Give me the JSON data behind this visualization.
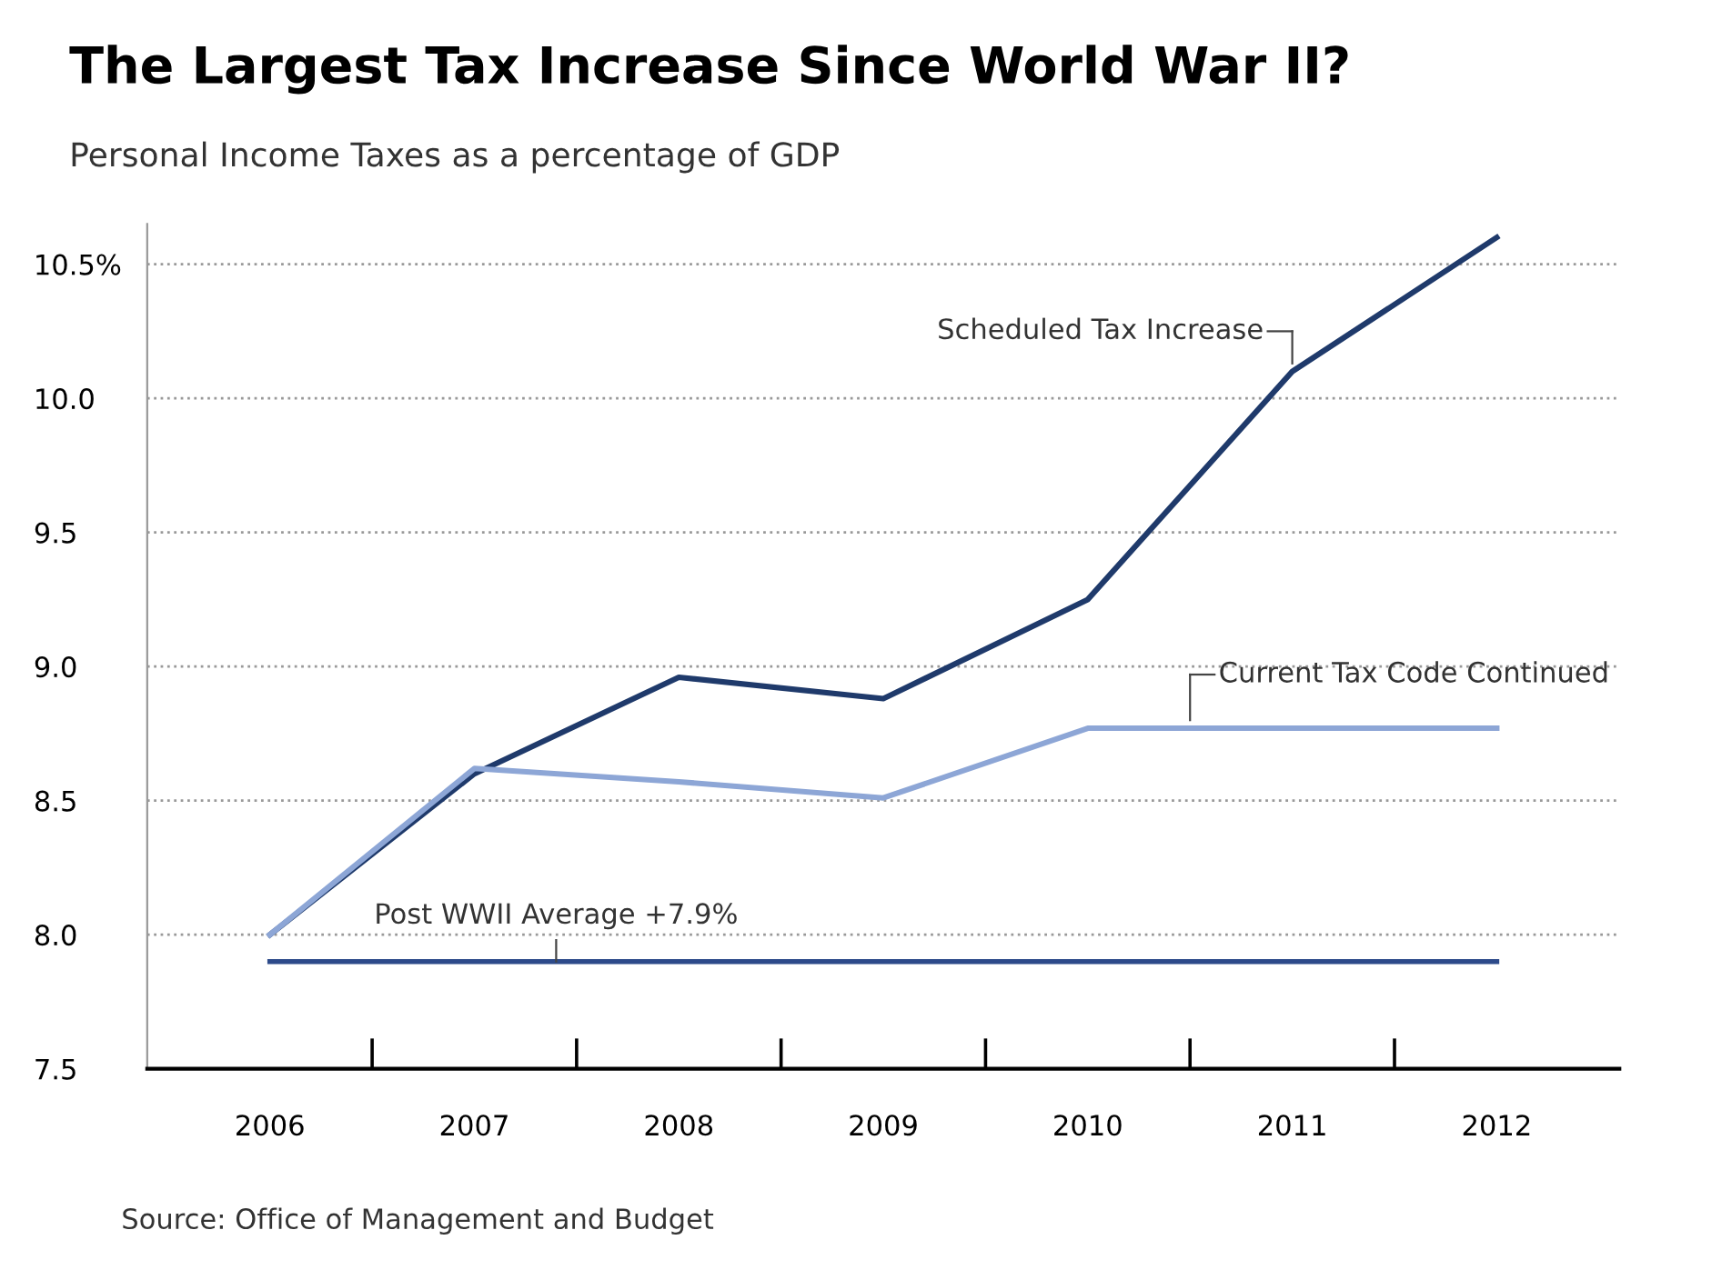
{
  "chart_data": {
    "type": "line",
    "title": "The Largest Tax Increase Since World War II?",
    "subtitle": "Personal Income Taxes as a percentage of GDP",
    "categories": [
      "2006",
      "2007",
      "2008",
      "2009",
      "2010",
      "2011",
      "2012"
    ],
    "series": [
      {
        "name": "Scheduled Tax Increase",
        "color": "#1f3a6b",
        "values": [
          8.0,
          8.6,
          8.96,
          8.88,
          9.25,
          10.1,
          10.6
        ]
      },
      {
        "name": "Current Tax Code Continued",
        "color": "#8da6d6",
        "values": [
          8.0,
          8.62,
          8.57,
          8.51,
          8.77,
          8.77,
          8.77
        ]
      }
    ],
    "ref_lines": [
      {
        "axis": "y",
        "value": 7.9,
        "label": "Post WWII Average +7.9%",
        "color": "#2d4a8a"
      }
    ],
    "ylim": [
      7.5,
      10.65
    ],
    "yticks": [
      {
        "value": 10.5,
        "label": "10.5%"
      },
      {
        "value": 10.0,
        "label": "10.0"
      },
      9.5,
      {
        "value": 9.0,
        "label": "9.0"
      },
      8.5,
      {
        "value": 8.0,
        "label": "8.0"
      },
      7.5
    ],
    "grid": "y",
    "legend": false,
    "marker": "none",
    "line_style": "solid",
    "annotations": [
      "Source: Office of Management and Budget"
    ]
  }
}
